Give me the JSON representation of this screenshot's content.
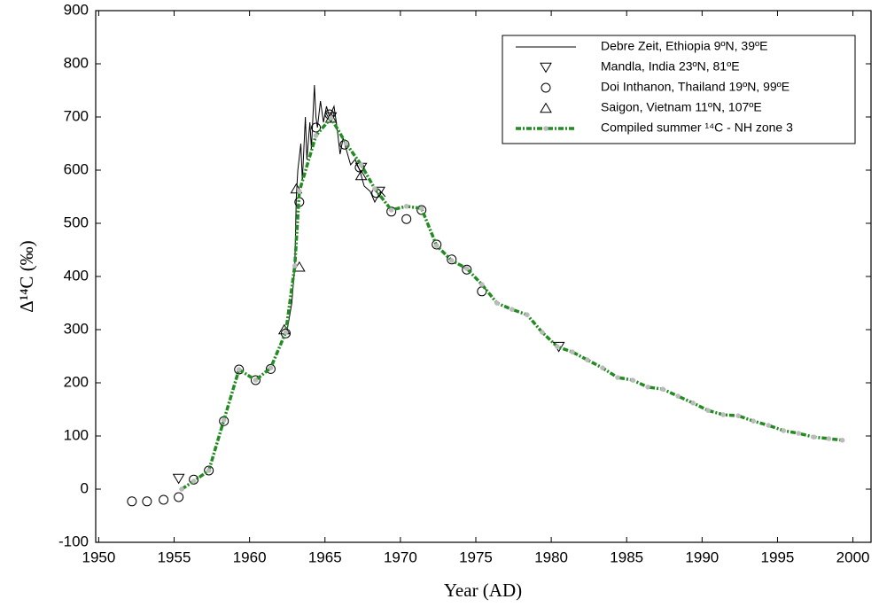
{
  "chart_data": {
    "type": "scatter",
    "x_label": "Year (AD)",
    "y_label": "Δ¹⁴C (‰)",
    "xlim": [
      1949.8,
      2001.2
    ],
    "ylim": [
      -100,
      900
    ],
    "xticks": [
      1950,
      1955,
      1960,
      1965,
      1970,
      1975,
      1980,
      1985,
      1990,
      1995,
      2000
    ],
    "yticks": [
      -100,
      0,
      100,
      200,
      300,
      400,
      500,
      600,
      700,
      800,
      900
    ],
    "legend": "upper right",
    "series": [
      {
        "name": "Debre Zeit, Ethiopia 9ºN, 39ºE",
        "style": "line",
        "color": "#000000",
        "x": [
          1962.5,
          1962.8,
          1963.0,
          1963.1,
          1963.2,
          1963.4,
          1963.5,
          1963.7,
          1963.8,
          1964.0,
          1964.1,
          1964.3,
          1964.4,
          1964.5,
          1964.7,
          1964.9,
          1965.1,
          1965.3,
          1965.6,
          1965.8,
          1966.0,
          1966.2,
          1966.4,
          1966.7,
          1967.0,
          1967.3,
          1967.6,
          1968.0,
          1968.3,
          1968.7,
          1969.0
        ],
        "values": [
          300,
          350,
          420,
          550,
          600,
          650,
          580,
          700,
          620,
          690,
          640,
          760,
          700,
          680,
          730,
          690,
          720,
          700,
          720,
          680,
          630,
          660,
          640,
          610,
          620,
          600,
          570,
          560,
          540,
          560,
          550
        ]
      },
      {
        "name": "Mandla, India 23ºN, 81ºE",
        "style": "triangle-down",
        "color": "#000000",
        "x": [
          1955.3,
          1965.4,
          1967.4,
          1968.6,
          1980.5
        ],
        "values": [
          20,
          700,
          605,
          560,
          268
        ]
      },
      {
        "name": "Doi Inthanon, Thailand 19ºN, 99ºE",
        "style": "circle",
        "color": "#000000",
        "x": [
          1952.2,
          1953.2,
          1954.3,
          1955.3,
          1956.3,
          1957.3,
          1958.3,
          1959.3,
          1960.4,
          1961.4,
          1962.4,
          1963.3,
          1964.4,
          1965.3,
          1966.3,
          1967.3,
          1968.4,
          1969.4,
          1970.4,
          1971.4,
          1972.4,
          1973.4,
          1974.4,
          1975.4
        ],
        "values": [
          -23,
          -23,
          -20,
          -15,
          18,
          35,
          128,
          225,
          205,
          226,
          293,
          540,
          680,
          705,
          648,
          605,
          557,
          522,
          508,
          525,
          460,
          432,
          413,
          372
        ]
      },
      {
        "name": "Saigon, Vietnam 11ºN, 107ºE",
        "style": "triangle-up",
        "color": "#000000",
        "x": [
          1962.3,
          1963.1,
          1963.3,
          1965.4,
          1967.4
        ],
        "values": [
          300,
          565,
          418,
          698,
          590
        ]
      },
      {
        "name": "Compiled summer ¹⁴C - NH zone 3",
        "style": "dotted-line",
        "color": "#228b22",
        "x": [
          1955.5,
          1956.3,
          1957.3,
          1958.3,
          1959.3,
          1960.4,
          1961.4,
          1962.4,
          1963.0,
          1963.3,
          1964.4,
          1965.4,
          1966.4,
          1967.4,
          1968.3,
          1969.4,
          1970.4,
          1971.4,
          1972.4,
          1973.4,
          1974.4,
          1975.4,
          1976.4,
          1977.4,
          1978.4,
          1979.4,
          1980.4,
          1981.4,
          1982.4,
          1983.4,
          1984.4,
          1985.4,
          1986.4,
          1987.4,
          1988.4,
          1989.4,
          1990.4,
          1991.4,
          1992.4,
          1993.4,
          1994.4,
          1995.4,
          1996.4,
          1997.4,
          1998.4,
          1999.3
        ],
        "values": [
          0,
          15,
          35,
          130,
          225,
          205,
          228,
          295,
          420,
          560,
          665,
          698,
          650,
          610,
          565,
          525,
          532,
          528,
          458,
          430,
          415,
          385,
          350,
          338,
          328,
          295,
          268,
          258,
          243,
          228,
          210,
          205,
          192,
          188,
          175,
          162,
          148,
          140,
          138,
          128,
          120,
          110,
          105,
          98,
          95,
          92
        ]
      }
    ]
  }
}
